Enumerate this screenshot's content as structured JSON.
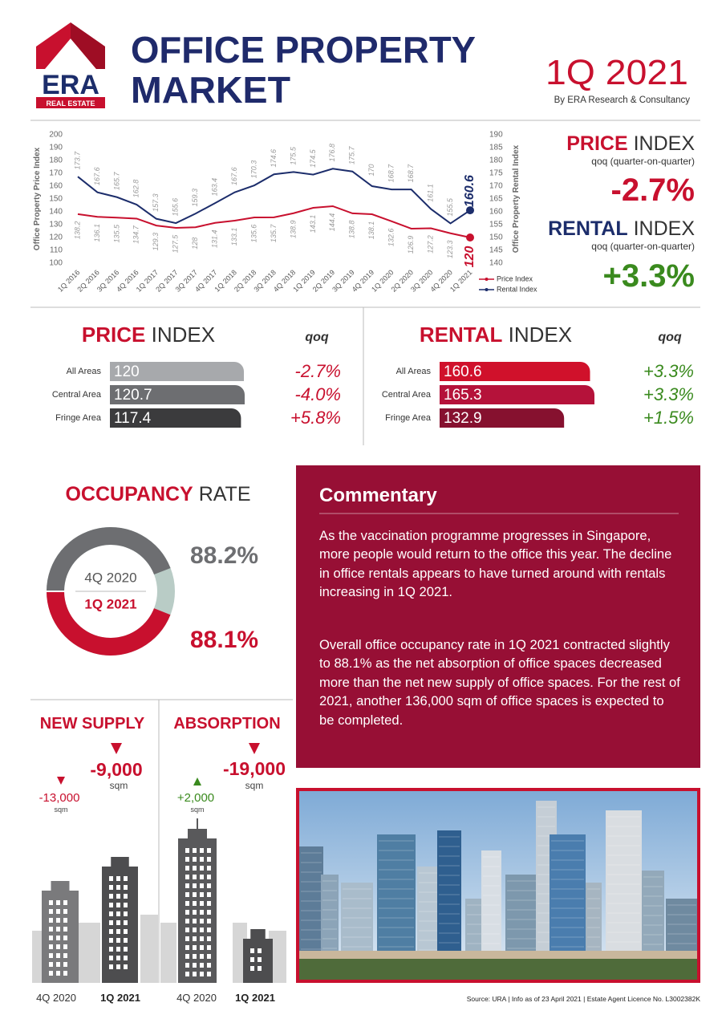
{
  "header": {
    "logo_text": "ERA",
    "logo_subtext": "REAL ESTATE",
    "title_lines": [
      "OFFICE PROPERTY",
      "MARKET"
    ],
    "period": "1Q 2021",
    "byline": "By ERA Research & Consultancy"
  },
  "kpis": [
    {
      "title_bold": "PRICE",
      "title_light": "INDEX",
      "note": "qoq (quarter-on-quarter)",
      "value": "-2.7%"
    },
    {
      "title_bold": "RENTAL",
      "title_light": "INDEX",
      "note": "qoq (quarter-on-quarter)",
      "value": "+3.3%"
    }
  ],
  "chart_data": [
    {
      "type": "line",
      "x": [
        "1Q 2016",
        "2Q 2016",
        "3Q 2016",
        "4Q 2016",
        "1Q 2017",
        "2Q 2017",
        "3Q 2017",
        "4Q 2017",
        "1Q 2018",
        "2Q 2018",
        "3Q 2018",
        "4Q 2018",
        "1Q 2019",
        "2Q 2019",
        "3Q 2019",
        "4Q 2019",
        "1Q 2020",
        "2Q 2020",
        "3Q 2020",
        "4Q 2020",
        "1Q 2021"
      ],
      "series": [
        {
          "name": "Price Index",
          "color": "#c8102e",
          "values": [
            138.2,
            136.1,
            135.5,
            134.7,
            129.3,
            127.5,
            128,
            131.4,
            133.1,
            135.6,
            135.7,
            138.9,
            143.1,
            144.4,
            138.8,
            138.1,
            132.6,
            126.9,
            127.2,
            123.3,
            120
          ]
        },
        {
          "name": "Rental Index",
          "color": "#1c2d6b",
          "axis": "y2",
          "values": [
            173.7,
            167.6,
            165.7,
            162.8,
            157.3,
            155.6,
            159.3,
            163.4,
            167.6,
            170.3,
            174.6,
            175.5,
            174.5,
            176.8,
            175.7,
            170,
            168.7,
            168.7,
            161.1,
            155.5,
            160.6
          ]
        }
      ],
      "ylabel": "Office Property Price Index",
      "y2label": "Office Property Rental Index",
      "ylim": [
        100,
        200
      ],
      "yticks": [
        100,
        110,
        120,
        130,
        140,
        150,
        160,
        170,
        180,
        190,
        200
      ],
      "y2lim": [
        140,
        190
      ],
      "y2ticks": [
        140,
        145,
        150,
        155,
        160,
        165,
        170,
        175,
        180,
        185,
        190
      ]
    },
    {
      "type": "hbar",
      "title_bold": "PRICE",
      "title_light": "INDEX",
      "qoq_header": "qoq",
      "categories": [
        "All Areas",
        "Central Area",
        "Fringe Area"
      ],
      "values": [
        120,
        120.7,
        117.4
      ],
      "colors": [
        "#a7a9ac",
        "#6d6e71",
        "#3b3b3d"
      ],
      "qoq": [
        "-2.7%",
        "-4.0%",
        "+5.8%"
      ]
    },
    {
      "type": "hbar",
      "title_bold": "RENTAL",
      "title_light": "INDEX",
      "qoq_header": "qoq",
      "categories": [
        "All Areas",
        "Central Area",
        "Fringe Area"
      ],
      "values": [
        160.6,
        165.3,
        132.9
      ],
      "colors": [
        "#d0112b",
        "#b5123a",
        "#86112f"
      ],
      "qoq": [
        "+3.3%",
        "+3.3%",
        "+1.5%"
      ]
    },
    {
      "type": "donut",
      "title_bold": "OCCUPANCY",
      "title_light": "RATE",
      "categories": [
        "4Q 2020",
        "1Q 2021"
      ],
      "values": [
        88.2,
        88.1
      ],
      "value_labels": [
        "88.2%",
        "88.1%"
      ],
      "colors": [
        "#6d6e71",
        "#c8102e"
      ]
    }
  ],
  "commentary": {
    "title": "Commentary",
    "paragraphs": [
      "As the vaccination programme progresses in Singapore, more people would return to the office this year. The decline in office rentals appears to have turned around with rentals increasing in 1Q 2021.",
      "Overall office occupancy rate in 1Q 2021 contracted slightly to 88.1% as the net absorption of office spaces decreased more than the net new supply of office spaces. For the rest of 2021, another 136,000 sqm of office spaces is expected to be completed."
    ]
  },
  "supply": [
    {
      "title": "NEW SUPPLY",
      "categories": [
        "4Q 2020",
        "1Q 2021"
      ],
      "values": [
        "-13,000",
        "-9,000"
      ],
      "unit": "sqm"
    },
    {
      "title": "ABSORPTION",
      "categories": [
        "4Q 2020",
        "1Q 2021"
      ],
      "values": [
        "+2,000",
        "-19,000"
      ],
      "unit": "sqm"
    }
  ],
  "footer": {
    "source": "Source: URA | Info as of 23 April 2021 | Estate Agent Licence No. L3002382K"
  }
}
